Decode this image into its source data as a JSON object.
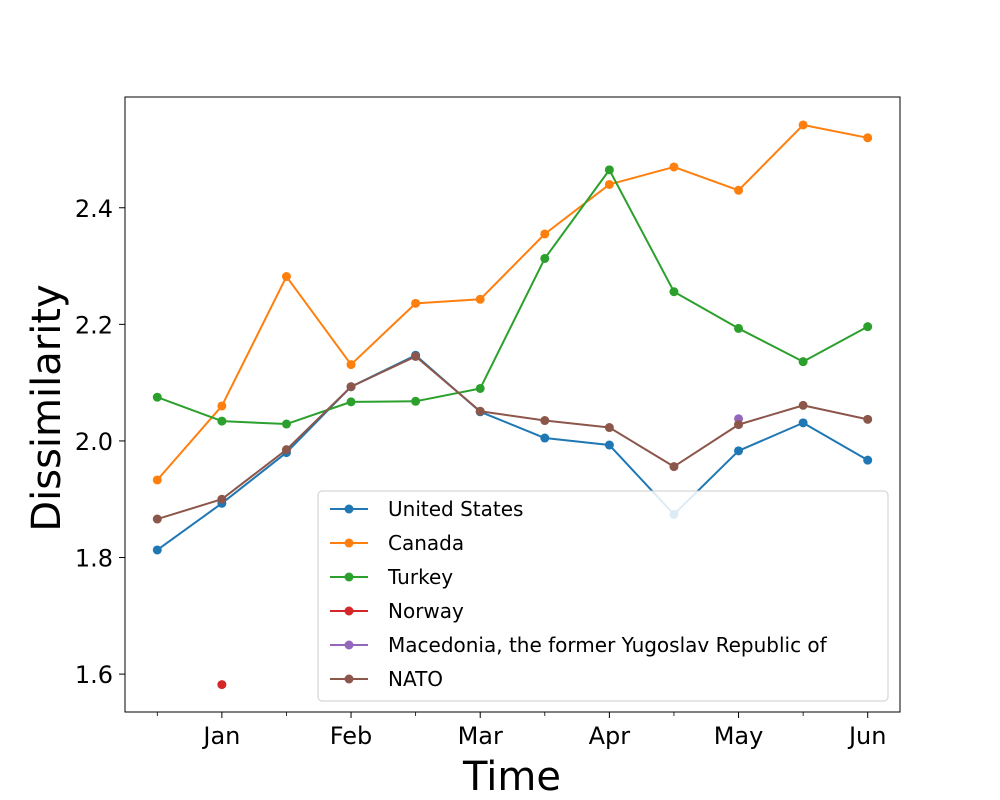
{
  "chart_data": {
    "type": "line",
    "title": "",
    "xlabel": "Time",
    "ylabel": "Dissimilarity",
    "ylim": [
      1.535,
      2.59
    ],
    "xlim": [
      -0.5,
      11.5
    ],
    "x": [
      0,
      1,
      2,
      3,
      4,
      5,
      6,
      7,
      8,
      9,
      10,
      11
    ],
    "x_tick_positions": [
      1,
      3,
      5,
      7,
      9,
      11
    ],
    "x_minor_tick_positions": [
      0,
      2,
      4,
      6,
      8,
      10
    ],
    "x_tick_labels": [
      "Jan",
      "Feb",
      "Mar",
      "Apr",
      "May",
      "Jun"
    ],
    "y_ticks": [
      1.6,
      1.8,
      2.0,
      2.2,
      2.4
    ],
    "y_tick_labels": [
      "1.6",
      "1.8",
      "2.0",
      "2.2",
      "2.4"
    ],
    "grid": false,
    "legend_position": "lower-right",
    "series": [
      {
        "name": "United States",
        "color": "#1f77b4",
        "values": [
          1.813,
          1.893,
          1.98,
          2.093,
          2.147,
          2.05,
          2.005,
          1.993,
          1.874,
          1.983,
          2.031,
          1.967
        ]
      },
      {
        "name": "Canada",
        "color": "#ff7f0e",
        "values": [
          1.933,
          2.06,
          2.282,
          2.131,
          2.236,
          2.243,
          2.355,
          2.44,
          2.47,
          2.43,
          2.542,
          2.52
        ]
      },
      {
        "name": "Turkey",
        "color": "#2ca02c",
        "values": [
          2.075,
          2.034,
          2.029,
          2.067,
          2.068,
          2.09,
          2.313,
          2.465,
          2.256,
          2.193,
          2.136,
          2.196
        ]
      },
      {
        "name": "Norway",
        "color": "#d62728",
        "values": [
          null,
          1.582,
          null,
          null,
          null,
          null,
          null,
          null,
          null,
          null,
          null,
          null
        ]
      },
      {
        "name": "Macedonia, the former Yugoslav Republic of",
        "color": "#9467bd",
        "values": [
          null,
          null,
          null,
          null,
          null,
          null,
          null,
          null,
          null,
          2.038,
          null,
          null
        ]
      },
      {
        "name": "NATO",
        "color": "#8c564b",
        "values": [
          1.866,
          1.9,
          1.985,
          2.093,
          2.145,
          2.051,
          2.035,
          2.023,
          1.956,
          2.028,
          2.061,
          2.037
        ]
      }
    ]
  }
}
